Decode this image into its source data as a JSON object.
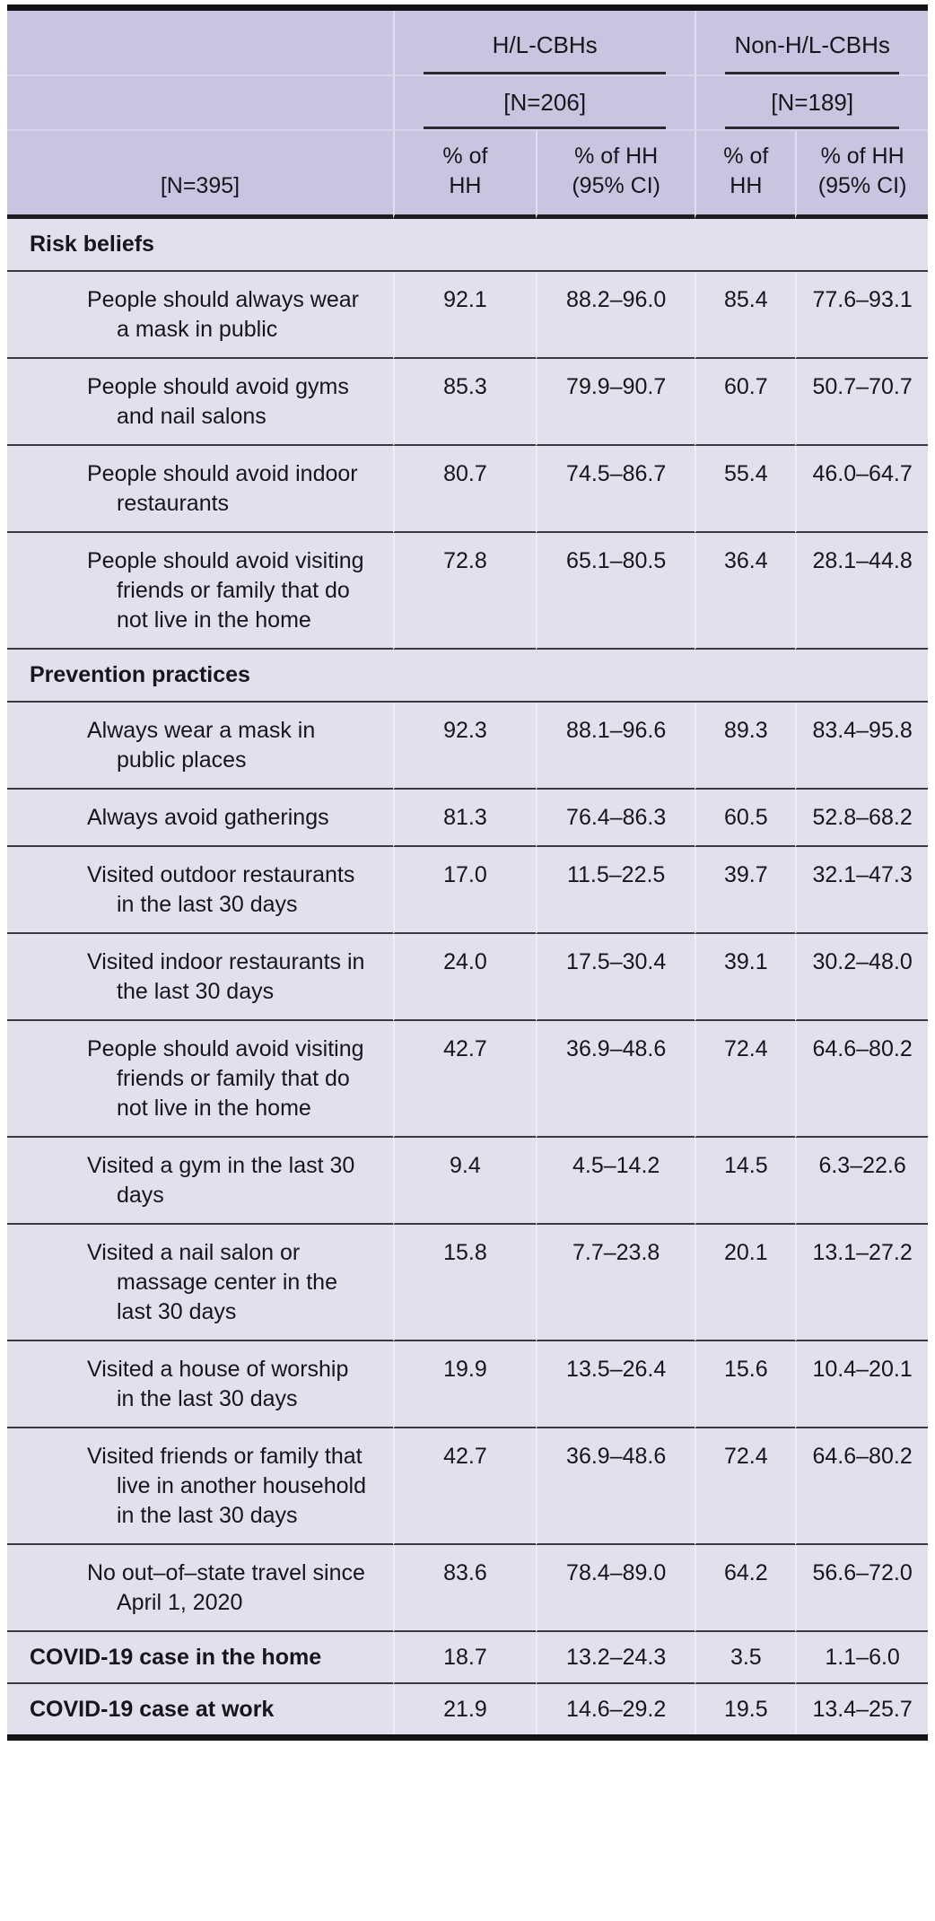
{
  "table": {
    "header": {
      "stub_n": "[N=395]",
      "groups": [
        {
          "label": "H/L-CBHs",
          "n": "[N=206]",
          "sub": [
            "% of\nHH",
            "% of HH\n(95% CI)"
          ]
        },
        {
          "label": "Non-H/L-CBHs",
          "n": "[N=189]",
          "sub": [
            "% of\nHH",
            "% of HH\n(95% CI)"
          ]
        }
      ]
    },
    "rows": [
      {
        "type": "section",
        "label": "Risk beliefs"
      },
      {
        "type": "item",
        "label": "People should always wear a mask in public",
        "values": [
          "92.1",
          "88.2–96.0",
          "85.4",
          "77.6–93.1"
        ]
      },
      {
        "type": "item",
        "label": "People should avoid gyms and nail salons",
        "values": [
          "85.3",
          "79.9–90.7",
          "60.7",
          "50.7–70.7"
        ]
      },
      {
        "type": "item",
        "label": "People should avoid indoor restaurants",
        "values": [
          "80.7",
          "74.5–86.7",
          "55.4",
          "46.0–64.7"
        ]
      },
      {
        "type": "item",
        "label": "People should avoid visiting friends or family that do not live in the home",
        "values": [
          "72.8",
          "65.1–80.5",
          "36.4",
          "28.1–44.8"
        ]
      },
      {
        "type": "section",
        "label": "Prevention practices"
      },
      {
        "type": "item",
        "label": "Always wear a mask in public places",
        "values": [
          "92.3",
          "88.1–96.6",
          "89.3",
          "83.4–95.8"
        ]
      },
      {
        "type": "item",
        "label": "Always avoid gatherings",
        "values": [
          "81.3",
          "76.4–86.3",
          "60.5",
          "52.8–68.2"
        ]
      },
      {
        "type": "item",
        "label": "Visited outdoor restaurants in the last 30 days",
        "values": [
          "17.0",
          "11.5–22.5",
          "39.7",
          "32.1–47.3"
        ]
      },
      {
        "type": "item",
        "label": "Visited indoor restaurants in the last 30 days",
        "values": [
          "24.0",
          "17.5–30.4",
          "39.1",
          "30.2–48.0"
        ]
      },
      {
        "type": "item",
        "label": "People should avoid visiting friends or family that do not live in the home",
        "values": [
          "42.7",
          "36.9–48.6",
          "72.4",
          "64.6–80.2"
        ]
      },
      {
        "type": "item",
        "label": "Visited a gym in the last 30 days",
        "values": [
          "9.4",
          "4.5–14.2",
          "14.5",
          "6.3–22.6"
        ]
      },
      {
        "type": "item",
        "label": "Visited a nail salon or massage center in the last 30 days",
        "values": [
          "15.8",
          "7.7–23.8",
          "20.1",
          "13.1–27.2"
        ]
      },
      {
        "type": "item",
        "label": "Visited a house of worship in the last 30 days",
        "values": [
          "19.9",
          "13.5–26.4",
          "15.6",
          "10.4–20.1"
        ]
      },
      {
        "type": "item",
        "label": "Visited friends or family that live in another household in the last 30 days",
        "values": [
          "42.7",
          "36.9–48.6",
          "72.4",
          "64.6–80.2"
        ]
      },
      {
        "type": "item",
        "label": "No out–of–state travel since April 1, 2020",
        "values": [
          "83.6",
          "78.4–89.0",
          "64.2",
          "56.6–72.0"
        ]
      },
      {
        "type": "bold",
        "label": "COVID-19 case in the home",
        "values": [
          "18.7",
          "13.2–24.3",
          "3.5",
          "1.1–6.0"
        ]
      },
      {
        "type": "bold",
        "label": "COVID-19 case at work",
        "values": [
          "21.9",
          "14.6–29.2",
          "19.5",
          "13.4–25.7"
        ]
      }
    ],
    "colors": {
      "header_bg": "#c7c5e0",
      "body_bg": "#e2e0ec",
      "rule_thin": "#3b383f",
      "rule_thick": "#131216",
      "text": "#17161b"
    }
  }
}
